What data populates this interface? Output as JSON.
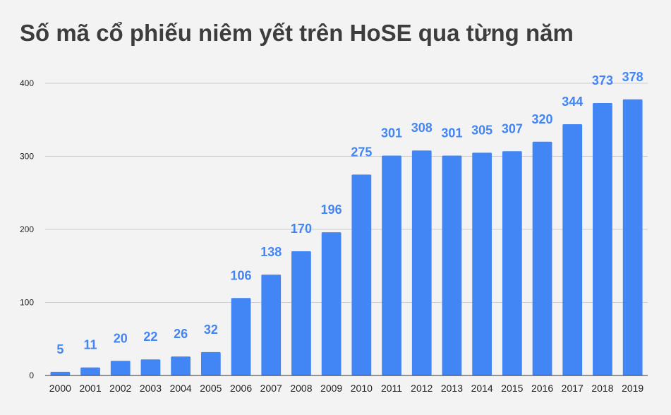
{
  "chart_data": {
    "type": "bar",
    "title": "Số mã cổ phiếu niêm yết trên HoSE qua từng năm",
    "xlabel": "",
    "ylabel": "",
    "categories": [
      "2000",
      "2001",
      "2002",
      "2003",
      "2004",
      "2005",
      "2006",
      "2007",
      "2008",
      "2009",
      "2010",
      "2011",
      "2012",
      "2013",
      "2014",
      "2015",
      "2016",
      "2017",
      "2018",
      "2019"
    ],
    "values": [
      5,
      11,
      20,
      22,
      26,
      32,
      106,
      138,
      170,
      196,
      275,
      301,
      308,
      301,
      305,
      307,
      320,
      344,
      373,
      378
    ],
    "ylim": [
      0,
      400
    ],
    "yticks": [
      0,
      100,
      200,
      300,
      400
    ],
    "grid": true,
    "legend": "none",
    "data_labels": true,
    "bar_color": "#4285f4",
    "label_color": "#4285f4",
    "grid_color": "#cccccc",
    "baseline_color": "#333333"
  }
}
